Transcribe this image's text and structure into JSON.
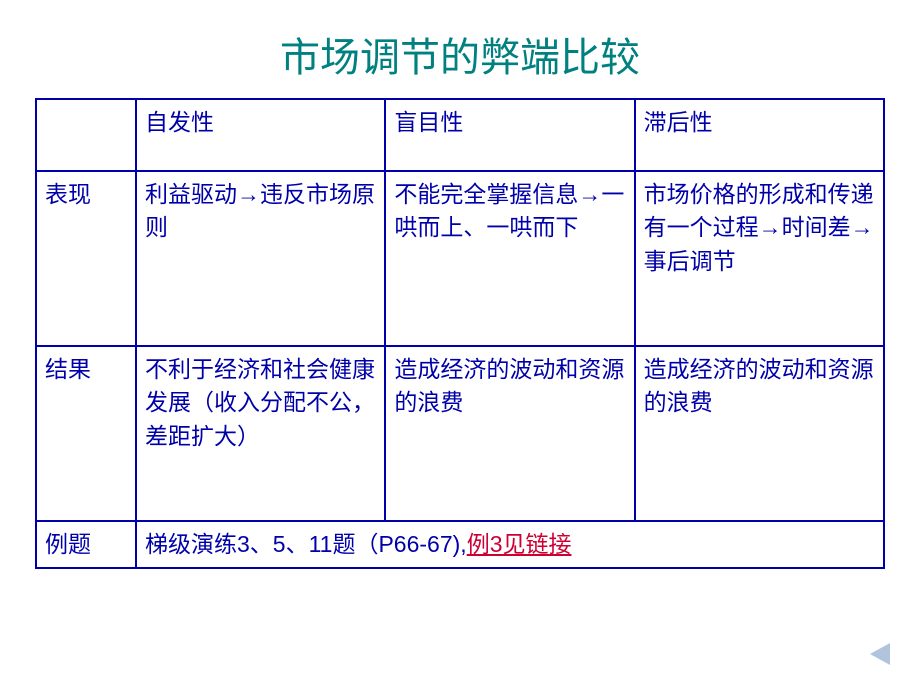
{
  "title": "市场调节的弊端比较",
  "table": {
    "border_color": "#0000aa",
    "text_color": "#0000aa",
    "font_size": 23,
    "columns": [
      {
        "key": "label",
        "width": 100
      },
      {
        "key": "spontaneity",
        "header": "自发性"
      },
      {
        "key": "blindness",
        "header": "盲目性"
      },
      {
        "key": "lag",
        "header": "滞后性"
      }
    ],
    "rows": {
      "perf": {
        "label": "表现",
        "spontaneity": "利益驱动→违反市场原则",
        "blindness": "不能完全掌握信息→一哄而上、一哄而下",
        "lag": "市场价格的形成和传递有一个过程→时间差→事后调节"
      },
      "result": {
        "label": "结果",
        "spontaneity": "不利于经济和社会健康发展（收入分配不公，差距扩大）",
        "blindness": "造成经济的波动和资源的浪费",
        "lag": "造成经济的波动和资源的浪费"
      },
      "example": {
        "label": "例题",
        "content_prefix": "梯级演练3、5、11题（P66-67),",
        "link_text": "例3见链接"
      }
    }
  },
  "title_color": "#008080",
  "title_fontsize": 40,
  "link_color": "#cc0033",
  "nav_triangle_color": "#b0c4de"
}
